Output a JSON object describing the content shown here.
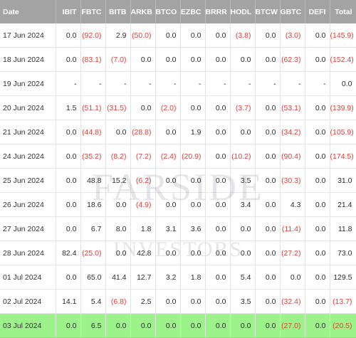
{
  "table": {
    "headers": [
      "Date",
      "IBIT",
      "FBTC",
      "BITB",
      "ARKB",
      "BTCO",
      "EZBC",
      "BRRR",
      "HODL",
      "BTCW",
      "GBTC",
      "DEFI",
      "Total"
    ],
    "rows": [
      {
        "cells": [
          "17 Jun 2024",
          "0.0",
          "(92.0)",
          "2.9",
          "(50.0)",
          "0.0",
          "0.0",
          "0.0",
          "(3.8)",
          "0.0",
          "(3.0)",
          "0.0",
          "(145.9)"
        ]
      },
      {
        "cells": [
          "18 Jun 2024",
          "0.0",
          "(83.1)",
          "(7.0)",
          "0.0",
          "0.0",
          "0.0",
          "0.0",
          "0.0",
          "0.0",
          "(62.3)",
          "0.0",
          "(152.4)"
        ]
      },
      {
        "cells": [
          "19 Jun 2024",
          "-",
          "-",
          "-",
          "-",
          "-",
          "-",
          "-",
          "-",
          "-",
          "-",
          "-",
          "0.0"
        ]
      },
      {
        "cells": [
          "20 Jun 2024",
          "1.5",
          "(51.1)",
          "(31.5)",
          "0.0",
          "(2.0)",
          "0.0",
          "0.0",
          "(3.7)",
          "0.0",
          "(53.1)",
          "0.0",
          "(139.9)"
        ]
      },
      {
        "cells": [
          "21 Jun 2024",
          "0.0",
          "(44.8)",
          "0.0",
          "(28.8)",
          "0.0",
          "1.9",
          "0.0",
          "0.0",
          "0.0",
          "(34.2)",
          "0.0",
          "(105.9)"
        ]
      },
      {
        "cells": [
          "24 Jun 2024",
          "0.0",
          "(35.2)",
          "(8.2)",
          "(7.2)",
          "(2.4)",
          "(20.9)",
          "0.0",
          "(10.2)",
          "0.0",
          "(90.4)",
          "0.0",
          "(174.5)"
        ]
      },
      {
        "cells": [
          "25 Jun 2024",
          "0.0",
          "48.8",
          "15.2",
          "(6.2)",
          "0.0",
          "0.0",
          "0.0",
          "3.5",
          "0.0",
          "(30.3)",
          "0.0",
          "31.0"
        ]
      },
      {
        "cells": [
          "26 Jun 2024",
          "0.0",
          "18.6",
          "0.0",
          "(4.9)",
          "0.0",
          "0.0",
          "0.0",
          "3.4",
          "0.0",
          "4.3",
          "0.0",
          "21.4"
        ]
      },
      {
        "cells": [
          "27 Jun 2024",
          "0.0",
          "6.7",
          "8.0",
          "1.8",
          "3.1",
          "3.6",
          "0.0",
          "0.0",
          "0.0",
          "(11.4)",
          "0.0",
          "11.8"
        ]
      },
      {
        "cells": [
          "28 Jun 2024",
          "82.4",
          "(25.0)",
          "0.0",
          "42.8",
          "0.0",
          "0.0",
          "0.0",
          "0.0",
          "0.0",
          "(27.2)",
          "0.0",
          "73.0"
        ]
      },
      {
        "cells": [
          "01 Jul 2024",
          "0.0",
          "65.0",
          "41.4",
          "12.7",
          "3.2",
          "1.8",
          "0.0",
          "5.4",
          "0.0",
          "0.0",
          "0.0",
          "129.5"
        ]
      },
      {
        "cells": [
          "02 Jul 2024",
          "14.1",
          "5.4",
          "(6.8)",
          "2.5",
          "0.0",
          "0.0",
          "0.0",
          "3.5",
          "0.0",
          "(32.4)",
          "0.0",
          "(13.7)"
        ]
      },
      {
        "cells": [
          "03 Jul 2024",
          "0.0",
          "6.5",
          "0.0",
          "0.0",
          "0.0",
          "0.0",
          "0.0",
          "0.0",
          "0.0",
          "(27.0)",
          "0.0",
          "(20.5)"
        ]
      }
    ],
    "highlighted_row": 12
  },
  "watermark": {
    "line1": "FARSIDE",
    "line2": "INVESTORS"
  },
  "colors": {
    "header_bg": "#a3a3a3",
    "header_text": "#ffffff",
    "negative_text": "#e0403a",
    "highlight_bg": "#9cf38a"
  }
}
